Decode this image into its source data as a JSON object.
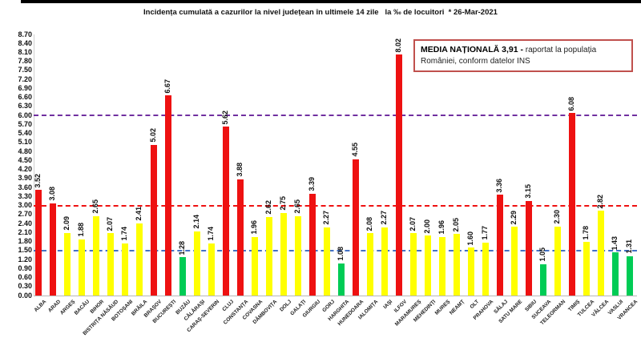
{
  "window": {
    "top_bar_color": "#000000",
    "background": "#ffffff"
  },
  "title": "Incidența cumulată a cazurilor la nivel județean în ultimele 14 zile   la ‰ de locuitori  * 26-Mar-2021",
  "legend": {
    "bold": "MEDIA NAȚIONALĂ 3,91 -",
    "rest": " raportat la populația României, conform datelor INS",
    "border_color": "#c0504d"
  },
  "chart_data": {
    "type": "bar",
    "title": "Incidența cumulată a cazurilor la nivel județean în ultimele 14 zile la ‰ de locuitori * 26-Mar-2021",
    "date": "26-Mar-2021",
    "unit": "‰ de locuitori",
    "categories": [
      "ALBA",
      "ARAD",
      "ARGEȘ",
      "BACĂU",
      "BIHOR",
      "BISTRIȚA NĂSĂUD",
      "BOTOȘANI",
      "BRĂILA",
      "BRAȘOV",
      "BUCUREȘTI",
      "BUZĂU",
      "CĂLĂRAȘI",
      "CARAȘ-SEVERIN",
      "CLUJ",
      "CONSTANȚA",
      "COVASNA",
      "DÂMBOVIȚA",
      "DOLJ",
      "GALAȚI",
      "GIURGIU",
      "GORJ",
      "HARGHITA",
      "HUNEDOARA",
      "IALOMIȚA",
      "IAȘI",
      "ILFOV",
      "MARAMUREȘ",
      "MEHEDINȚI",
      "MUREȘ",
      "NEAMȚ",
      "OLT",
      "PRAHOVA",
      "SĂLAJ",
      "SATU MARE",
      "SIBIU",
      "SUCEAVA",
      "TELEORMAN",
      "TIMIȘ",
      "TULCEA",
      "VÂLCEA",
      "VASLUI",
      "VRANCEA"
    ],
    "values": [
      3.52,
      3.08,
      2.09,
      1.88,
      2.65,
      2.07,
      1.74,
      2.41,
      5.02,
      6.67,
      1.28,
      2.14,
      1.74,
      5.62,
      3.88,
      1.96,
      2.62,
      2.75,
      2.65,
      3.39,
      2.27,
      1.08,
      4.55,
      2.08,
      2.27,
      8.02,
      2.07,
      2.0,
      1.96,
      2.05,
      1.6,
      1.77,
      3.36,
      2.29,
      3.15,
      1.05,
      2.3,
      6.08,
      1.78,
      2.82,
      1.43,
      1.31
    ],
    "bar_color_names": [
      "red",
      "red",
      "yellow",
      "yellow",
      "yellow",
      "yellow",
      "yellow",
      "yellow",
      "red",
      "red",
      "green",
      "yellow",
      "yellow",
      "red",
      "red",
      "yellow",
      "yellow",
      "yellow",
      "yellow",
      "red",
      "yellow",
      "green",
      "red",
      "yellow",
      "yellow",
      "red",
      "yellow",
      "yellow",
      "yellow",
      "yellow",
      "yellow",
      "yellow",
      "red",
      "yellow",
      "red",
      "green",
      "yellow",
      "red",
      "yellow",
      "yellow",
      "green",
      "green"
    ],
    "palette": {
      "red": "#ee1111",
      "yellow": "#ffff00",
      "green": "#00cc55"
    },
    "ylim": [
      0,
      8.7
    ],
    "ytick_step": 0.3,
    "ytick_labels": [
      "0.00",
      "0.30",
      "0.60",
      "0.90",
      "1.20",
      "1.50",
      "1.80",
      "2.10",
      "2.40",
      "2.70",
      "3.00",
      "3.30",
      "3.60",
      "3.90",
      "4.20",
      "4.50",
      "4.80",
      "5.10",
      "5.40",
      "5.70",
      "6.00",
      "6.30",
      "6.60",
      "6.90",
      "7.20",
      "7.50",
      "7.80",
      "8.10",
      "8.40",
      "8.70"
    ],
    "reference_lines": [
      {
        "value": 1.5,
        "color": "#4472c4"
      },
      {
        "value": 3.0,
        "color": "#ee1111"
      },
      {
        "value": 6.0,
        "color": "#7030a0"
      }
    ],
    "grid": false,
    "value_labels": true,
    "xlabel": "",
    "ylabel": ""
  }
}
